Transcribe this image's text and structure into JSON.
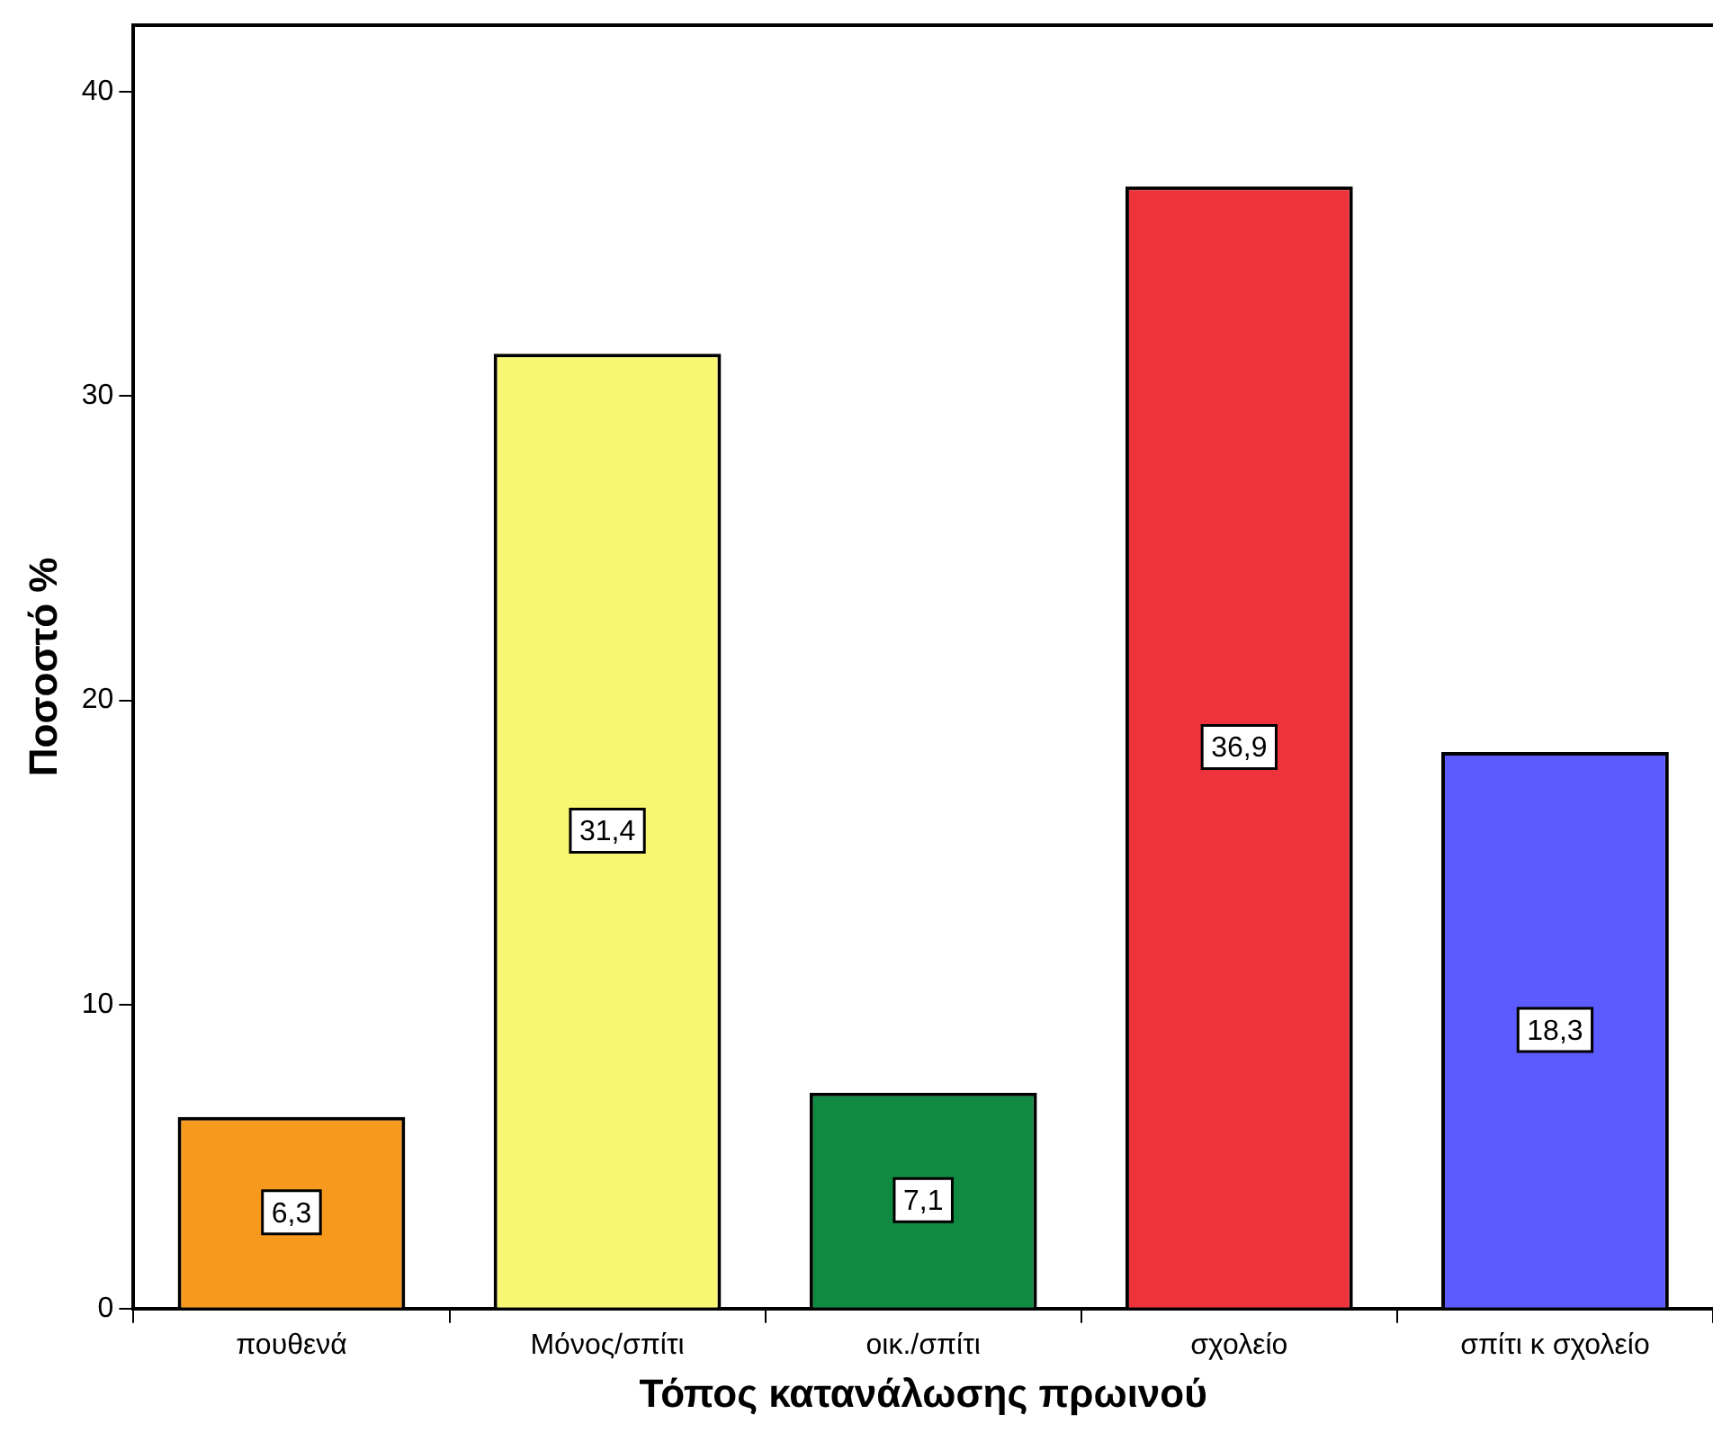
{
  "chart_data": {
    "type": "bar",
    "xlabel": "Τόπος κατανάλωσης πρωινού",
    "ylabel": "Ποσοστό %",
    "categories": [
      "πουθενά",
      "Μόνος/σπίτι",
      "οικ./σπίτι",
      "σχολείο",
      "σπίτι κ σχολείο"
    ],
    "values": [
      6.3,
      31.4,
      7.1,
      36.9,
      18.3
    ],
    "value_labels": [
      "6,3",
      "31,4",
      "7,1",
      "36,9",
      "18,3"
    ],
    "colors": [
      "#f7991d",
      "#f7f773",
      "#108a41",
      "#ef333c",
      "#5b5bff"
    ],
    "ylim": [
      0,
      42.2
    ],
    "yticks": [
      0,
      10,
      20,
      30,
      40
    ],
    "grid": false,
    "legend": false
  }
}
